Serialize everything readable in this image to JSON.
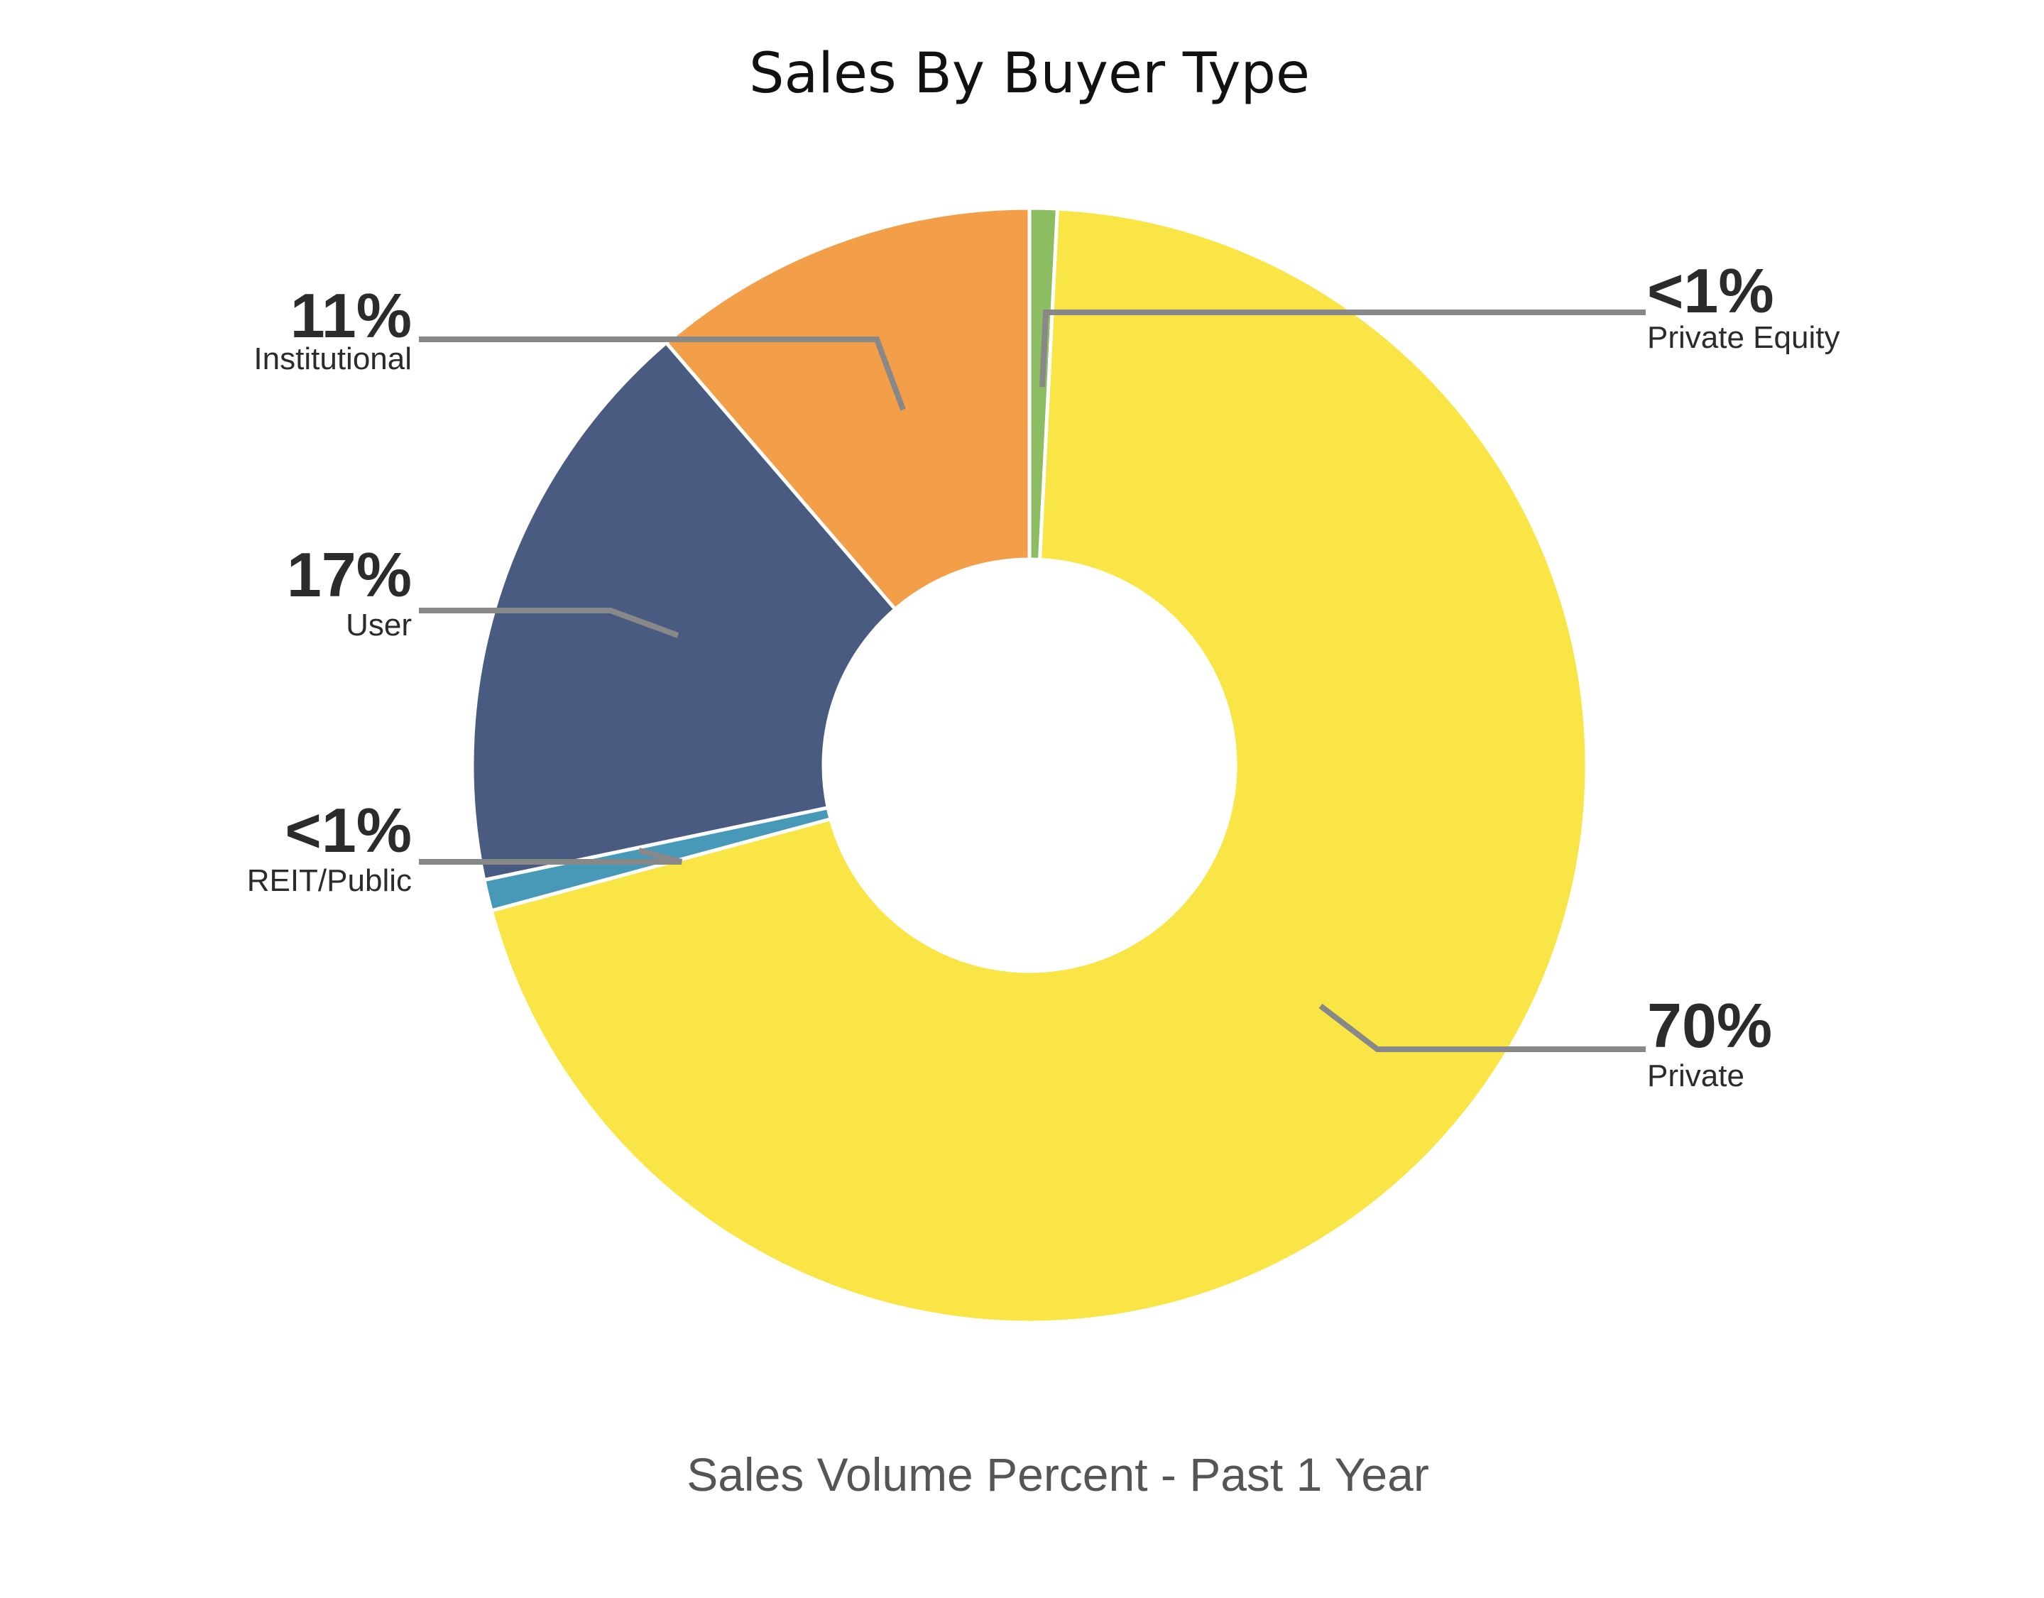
{
  "chart_data": {
    "type": "pie",
    "title": "Sales By Buyer Type",
    "subtitle": "Sales Volume Percent - Past 1 Year",
    "donut": true,
    "slices": [
      {
        "label": "Private Equity",
        "value": 0.8,
        "display": "<1%",
        "color": "#8dbd63"
      },
      {
        "label": "Private",
        "value": 70.0,
        "display": "70%",
        "color": "#f9e546"
      },
      {
        "label": "REIT/Public",
        "value": 0.9,
        "display": "<1%",
        "color": "#4898b8"
      },
      {
        "label": "User",
        "value": 17.0,
        "display": "17%",
        "color": "#4a5b82"
      },
      {
        "label": "Institutional",
        "value": 11.3,
        "display": "11%",
        "color": "#f39e48"
      }
    ]
  }
}
